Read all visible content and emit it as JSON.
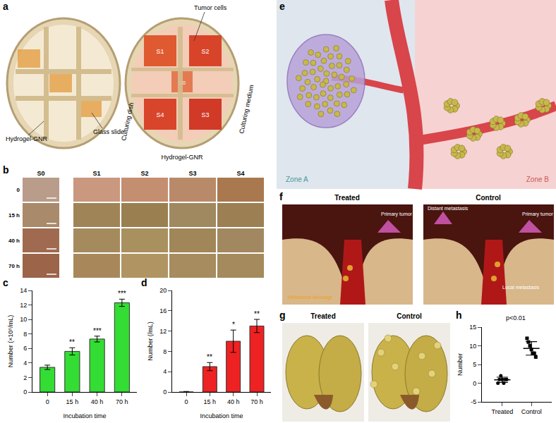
{
  "panels": {
    "a": {
      "label": "a",
      "hydrogel": "Hydrogel-GNR",
      "glass": "Glass slide",
      "tumor": "Tumor cells",
      "dish": "Culturing dish",
      "medium": "Culturing medium",
      "center": "S0",
      "wells": [
        "S1",
        "S2",
        "S3",
        "S4"
      ]
    },
    "b": {
      "label": "b",
      "columns": [
        "S0",
        "S1",
        "S2",
        "S3",
        "S4"
      ],
      "rows": [
        "0",
        "15 h",
        "40 h",
        "70 h"
      ]
    },
    "c": {
      "label": "c"
    },
    "d": {
      "label": "d"
    },
    "e": {
      "label": "e",
      "zones": [
        "Zone A",
        "Zone B"
      ]
    },
    "f": {
      "label": "f",
      "panels": [
        {
          "title": "Treated",
          "primary": "Primary tumor",
          "blockage": "Metastasis blockage"
        },
        {
          "title": "Control",
          "primary": "Primary tumor",
          "distant": "Distant metastasis",
          "local": "Local metastasis"
        }
      ]
    },
    "g": {
      "label": "g",
      "titles": [
        "Treated",
        "Control"
      ]
    },
    "h": {
      "label": "h"
    }
  },
  "chart_data": [
    {
      "type": "bar",
      "x_label": "Incubation time",
      "y_label": "Number (×10⁵/mL)",
      "categories": [
        "0",
        "15 h",
        "40 h",
        "70 h"
      ],
      "values": [
        3.4,
        5.6,
        7.3,
        12.3
      ],
      "errors": [
        0.3,
        0.5,
        0.4,
        0.5
      ],
      "significance": [
        null,
        "**",
        "***",
        "***"
      ],
      "color": "#33dd33",
      "ylim": [
        0,
        14
      ],
      "yticks": [
        0,
        2,
        4,
        6,
        8,
        10,
        12,
        14
      ],
      "grid": false
    },
    {
      "type": "bar",
      "x_label": "Incubation time",
      "y_label": "Number (/mL)",
      "categories": [
        "0",
        "15 h",
        "40 h",
        "70 h"
      ],
      "values": [
        0,
        5,
        10,
        13
      ],
      "errors": [
        0.1,
        0.8,
        2.2,
        1.3
      ],
      "significance": [
        null,
        "**",
        "*",
        "**"
      ],
      "color": "#ee2222",
      "ylim": [
        0,
        20
      ],
      "yticks": [
        0,
        4,
        8,
        12,
        16,
        20
      ],
      "grid": false
    },
    {
      "type": "scatter",
      "title": "p<0.01",
      "y_label": "Number",
      "series": [
        {
          "name": "Treated",
          "values": [
            0,
            1,
            2,
            1,
            0,
            1,
            1
          ],
          "mean": 0.9,
          "sd": 0.7,
          "marker": "circle"
        },
        {
          "name": "Control",
          "values": [
            12,
            11,
            10,
            9,
            8,
            8,
            7
          ],
          "mean": 9.3,
          "sd": 1.8,
          "marker": "square"
        }
      ],
      "ylim": [
        -5,
        15
      ],
      "yticks": [
        -5,
        0,
        5,
        10,
        15
      ],
      "grid": false
    }
  ]
}
